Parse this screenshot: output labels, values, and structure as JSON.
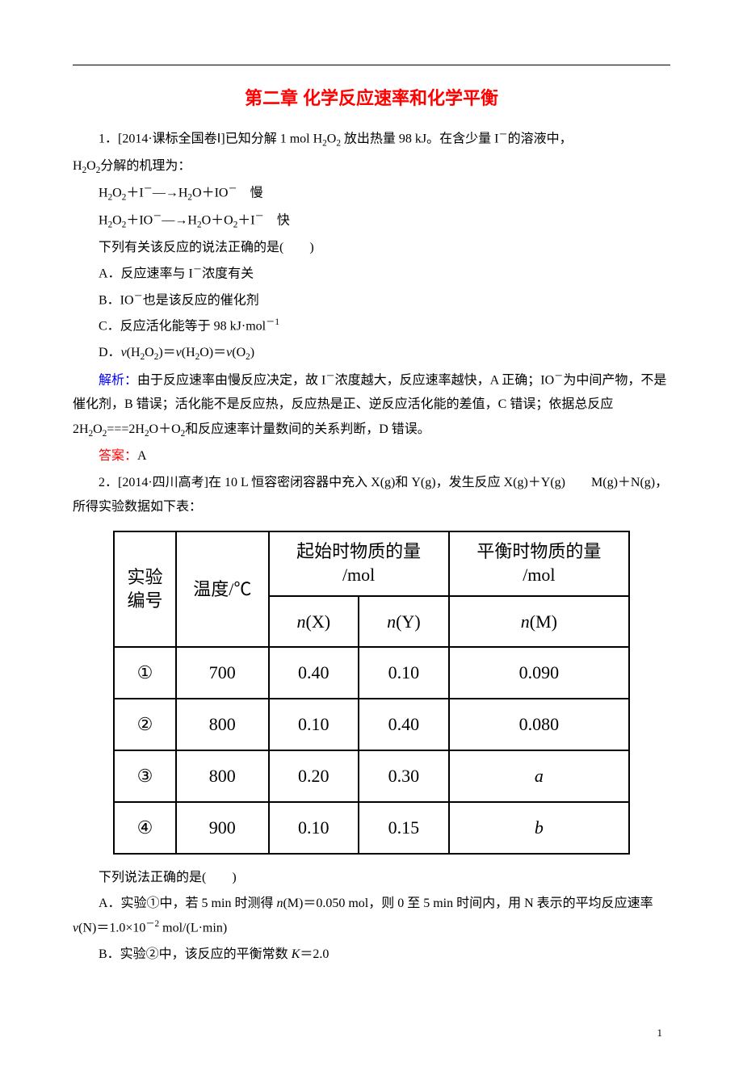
{
  "title": "第二章 化学反应速率和化学平衡",
  "q1": {
    "stem_a": "1．[2014·课标全国卷Ⅰ]已知分解 1 mol H",
    "stem_b": "放出热量 98 kJ。在含少量 I",
    "stem_c": "的溶液中，",
    "stem2_a": "H",
    "stem2_b": "分解的机理为：",
    "step1_a": "H",
    "step1_b": "＋I",
    "step1_c": "―→H",
    "step1_d": "O＋IO",
    "step1_e": "　慢",
    "step2_a": "H",
    "step2_b": "＋IO",
    "step2_c": "―→H",
    "step2_d": "O＋O",
    "step2_e": "＋I",
    "step2_f": "　快",
    "ask": "下列有关该反应的说法正确的是(　　)",
    "optA_a": "A．反应速率与 I",
    "optA_b": "浓度有关",
    "optB_a": "B．IO",
    "optB_b": "也是该反应的催化剂",
    "optC_a": "C．反应活化能等于 98 kJ·mol",
    "optD_a": "D．",
    "optD_b": "(H",
    "optD_c": ")＝",
    "optD_d": "(H",
    "optD_e": "O)＝",
    "optD_f": "(O",
    "optD_g": ")",
    "expl_label": "解析：",
    "expl_a": "由于反应速率由慢反应决定，故 I",
    "expl_b": "浓度越大，反应速率越快，A 正确；IO",
    "expl_c": "为中间产物，不是催化剂，B 错误；活化能不是反应热，反应热是正、逆反应活化能的差值，C 错误；依据总反应 2H",
    "expl_d": "===2H",
    "expl_e": "O＋O",
    "expl_f": "和反应速率计量数间的关系判断，D 错误。",
    "ans_label": "答案：",
    "ans": "A"
  },
  "q2": {
    "stem_a": "2．[2014·四川高考]在 10 L 恒容密闭容器中充入 X(g)和 Y(g)，发生反应 X(g)＋Y(g)　　M(g)＋N(g)，所得实验数据如下表：",
    "ask": "下列说法正确的是(　　)",
    "optA_a": "A．实验①中，若 5 min 时测得 ",
    "optA_b": "(M)＝0.050 mol，则 0 至 5 min 时间内，用 N 表示的平均反应速率 ",
    "optA_c": "(N)＝1.0×10",
    "optA_d": " mol/(L·min)",
    "optB_a": "B．实验②中，该反应的平衡常数 ",
    "optB_b": "＝2.0"
  },
  "table": {
    "headers": {
      "col1_l1": "实验",
      "col1_l2": "编号",
      "col2": "温度/℃",
      "col3_top": "起始时物质的量",
      "col3_unit": "/mol",
      "col4_top": "平衡时物质的量",
      "col4_unit": "/mol",
      "sub_nX": "(X)",
      "sub_nY": "(Y)",
      "sub_nM": "(M)"
    },
    "rows": [
      {
        "id": "①",
        "temp": "700",
        "nX": "0.40",
        "nY": "0.10",
        "nM": "0.090"
      },
      {
        "id": "②",
        "temp": "800",
        "nX": "0.10",
        "nY": "0.40",
        "nM": "0.080"
      },
      {
        "id": "③",
        "temp": "800",
        "nX": "0.20",
        "nY": "0.30",
        "nM_italic": "a"
      },
      {
        "id": "④",
        "temp": "900",
        "nX": "0.10",
        "nY": "0.15",
        "nM_italic": "b"
      }
    ]
  },
  "page_number": "1"
}
